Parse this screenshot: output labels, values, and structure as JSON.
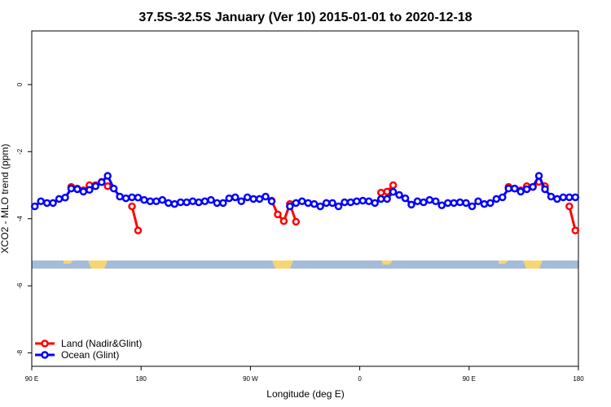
{
  "chart_data": {
    "type": "line",
    "title": "37.5S-32.5S January (Ver 10)   2015-01-01 to 2020-12-18",
    "x_label": "Longitude (deg E)",
    "y_label": "XCO2 - MLO trend (ppm)",
    "xlim": [
      90,
      540
    ],
    "ylim": [
      -8.4,
      1.6
    ],
    "xticks": [
      {
        "value": 90,
        "label": "90 E"
      },
      180,
      {
        "value": 270,
        "label": "90 W"
      },
      {
        "value": 360,
        "label": "0"
      },
      {
        "value": 450,
        "label": "90 E"
      },
      {
        "value": 540,
        "label": "180"
      }
    ],
    "yticks": [
      -8,
      -6,
      -4,
      -2,
      0
    ],
    "legend": "bottomleft",
    "x": [
      92.5,
      97.5,
      102.5,
      107.5,
      112.5,
      117.5,
      122.5,
      127.5,
      132.5,
      137.5,
      142.5,
      147.5,
      152.5,
      157.5,
      162.5,
      167.5,
      172.5,
      177.5,
      182.5,
      187.5,
      192.5,
      197.5,
      202.5,
      207.5,
      212.5,
      217.5,
      222.5,
      227.5,
      232.5,
      237.5,
      242.5,
      247.5,
      252.5,
      257.5,
      262.5,
      267.5,
      272.5,
      277.5,
      282.5,
      287.5,
      292.5,
      297.5,
      302.5,
      307.5,
      312.5,
      317.5,
      322.5,
      327.5,
      332.5,
      337.5,
      342.5,
      347.5,
      352.5,
      357.5,
      362.5,
      367.5,
      372.5,
      377.5,
      382.5,
      387.5,
      392.5,
      397.5,
      402.5,
      407.5,
      412.5,
      417.5,
      422.5,
      427.5,
      432.5,
      437.5,
      442.5,
      447.5,
      452.5,
      457.5,
      462.5,
      467.5,
      472.5,
      477.5,
      482.5,
      487.5,
      492.5,
      497.5,
      502.5,
      507.5,
      512.5,
      517.5,
      522.5,
      527.5,
      532.5,
      537.5
    ],
    "series": [
      {
        "name": "Land (Nadir&Glint)",
        "color": "#ff0000",
        "values": [
          null,
          null,
          null,
          null,
          null,
          null,
          -3.05,
          -3.1,
          -3.15,
          -3.0,
          -3.0,
          -2.9,
          -3.03,
          null,
          null,
          null,
          -3.63,
          -4.35,
          null,
          null,
          null,
          null,
          null,
          null,
          null,
          null,
          null,
          null,
          null,
          null,
          null,
          null,
          null,
          null,
          null,
          null,
          null,
          null,
          null,
          -3.46,
          -3.87,
          -4.07,
          -3.56,
          -4.09,
          null,
          null,
          null,
          null,
          null,
          null,
          null,
          null,
          null,
          null,
          null,
          null,
          null,
          -3.22,
          -3.19,
          -3.0,
          null,
          null,
          null,
          null,
          null,
          null,
          null,
          null,
          null,
          null,
          null,
          null,
          null,
          null,
          null,
          null,
          null,
          null,
          -3.05,
          -3.1,
          -3.15,
          -3.03,
          -3.05,
          -2.9,
          -3.03,
          null,
          null,
          null,
          -3.63,
          -4.35
        ]
      },
      {
        "name": "Ocean (Glint)",
        "color": "#0000ff",
        "values": [
          -3.63,
          -3.48,
          -3.53,
          -3.53,
          -3.41,
          -3.37,
          -3.1,
          -3.12,
          -3.19,
          -3.14,
          -3.03,
          -2.91,
          -2.72,
          -3.1,
          -3.34,
          -3.39,
          -3.36,
          -3.37,
          -3.44,
          -3.48,
          -3.48,
          -3.44,
          -3.53,
          -3.56,
          -3.51,
          -3.51,
          -3.48,
          -3.51,
          -3.48,
          -3.44,
          -3.53,
          -3.53,
          -3.39,
          -3.36,
          -3.48,
          -3.36,
          -3.41,
          -3.41,
          -3.34,
          -3.48,
          null,
          null,
          -3.63,
          -3.53,
          -3.48,
          -3.53,
          -3.56,
          -3.63,
          -3.53,
          -3.53,
          -3.63,
          -3.51,
          -3.51,
          -3.48,
          -3.46,
          -3.48,
          -3.53,
          -3.41,
          -3.41,
          -3.2,
          -3.29,
          -3.39,
          -3.58,
          -3.48,
          -3.51,
          -3.44,
          -3.48,
          -3.6,
          -3.53,
          -3.53,
          -3.51,
          -3.53,
          -3.63,
          -3.48,
          -3.56,
          -3.53,
          -3.41,
          -3.36,
          -3.1,
          -3.1,
          -3.19,
          -3.12,
          -3.05,
          -2.72,
          -3.12,
          -3.34,
          -3.41,
          -3.36,
          -3.36,
          -3.36
        ]
      }
    ]
  }
}
